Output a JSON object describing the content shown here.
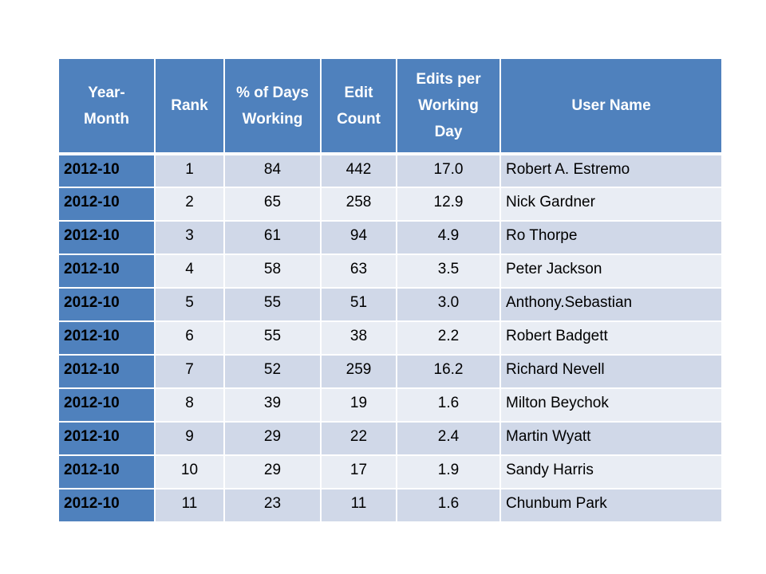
{
  "table": {
    "headers": {
      "year_month": "Year-\nMonth",
      "rank": "Rank",
      "pct_days_working": "% of Days\nWorking",
      "edit_count": "Edit\nCount",
      "edits_per_day": "Edits per\nWorking\nDay",
      "user_name": "User Name"
    },
    "rows": [
      {
        "year_month": "2012-10",
        "rank": "1",
        "pct_days_working": "84",
        "edit_count": "442",
        "edits_per_day": "17.0",
        "user_name": "Robert A. Estremo"
      },
      {
        "year_month": "2012-10",
        "rank": "2",
        "pct_days_working": "65",
        "edit_count": "258",
        "edits_per_day": "12.9",
        "user_name": "Nick Gardner"
      },
      {
        "year_month": "2012-10",
        "rank": "3",
        "pct_days_working": "61",
        "edit_count": "94",
        "edits_per_day": "4.9",
        "user_name": "Ro Thorpe"
      },
      {
        "year_month": "2012-10",
        "rank": "4",
        "pct_days_working": "58",
        "edit_count": "63",
        "edits_per_day": "3.5",
        "user_name": "Peter Jackson"
      },
      {
        "year_month": "2012-10",
        "rank": "5",
        "pct_days_working": "55",
        "edit_count": "51",
        "edits_per_day": "3.0",
        "user_name": "Anthony.Sebastian"
      },
      {
        "year_month": "2012-10",
        "rank": "6",
        "pct_days_working": "55",
        "edit_count": "38",
        "edits_per_day": "2.2",
        "user_name": "Robert Badgett"
      },
      {
        "year_month": "2012-10",
        "rank": "7",
        "pct_days_working": "52",
        "edit_count": "259",
        "edits_per_day": "16.2",
        "user_name": "Richard Nevell"
      },
      {
        "year_month": "2012-10",
        "rank": "8",
        "pct_days_working": "39",
        "edit_count": "19",
        "edits_per_day": "1.6",
        "user_name": "Milton Beychok"
      },
      {
        "year_month": "2012-10",
        "rank": "9",
        "pct_days_working": "29",
        "edit_count": "22",
        "edits_per_day": "2.4",
        "user_name": "Martin Wyatt"
      },
      {
        "year_month": "2012-10",
        "rank": "10",
        "pct_days_working": "29",
        "edit_count": "17",
        "edits_per_day": "1.9",
        "user_name": "Sandy Harris"
      },
      {
        "year_month": "2012-10",
        "rank": "11",
        "pct_days_working": "23",
        "edit_count": "11",
        "edits_per_day": "1.6",
        "user_name": "Chunbum Park"
      }
    ]
  },
  "colors": {
    "header_bg": "#4f81bd",
    "header_text": "#ffffff",
    "row_band_dark": "#d0d8e8",
    "row_band_light": "#e9edf4"
  }
}
